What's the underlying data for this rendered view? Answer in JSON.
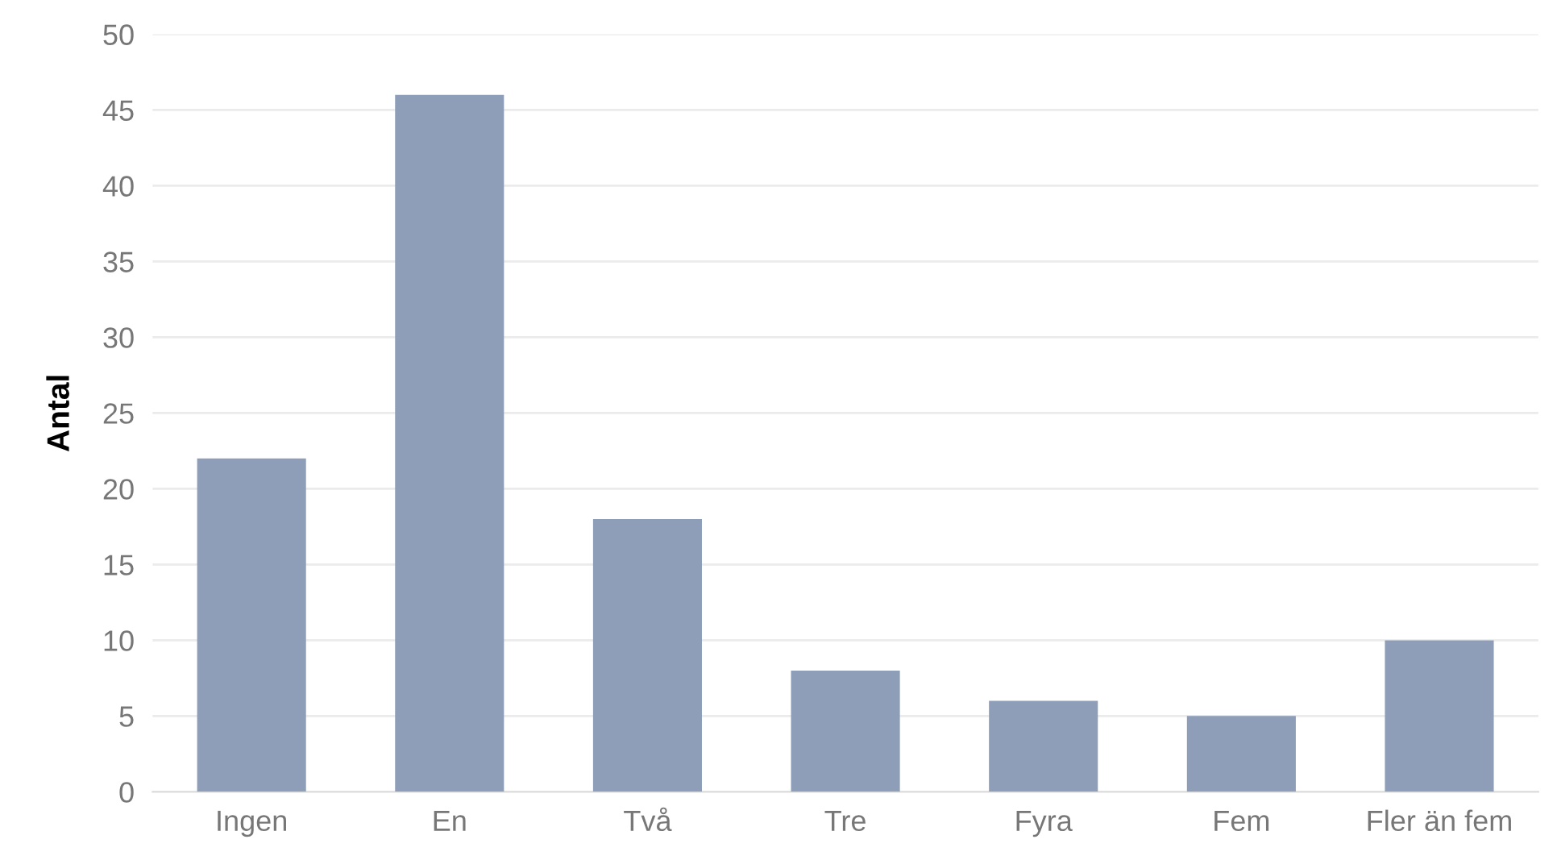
{
  "chart_data": {
    "type": "bar",
    "ylabel": "Antal",
    "categories": [
      "Ingen",
      "En",
      "Två",
      "Tre",
      "Fyra",
      "Fem",
      "Fler än fem"
    ],
    "values": [
      22,
      46,
      18,
      8,
      6,
      5,
      10
    ],
    "color": "#8e9eb8",
    "ylim": [
      0,
      50
    ],
    "yticks": [
      0,
      5,
      10,
      15,
      20,
      25,
      30,
      35,
      40,
      45,
      50
    ],
    "grid": "y",
    "legend": false
  }
}
